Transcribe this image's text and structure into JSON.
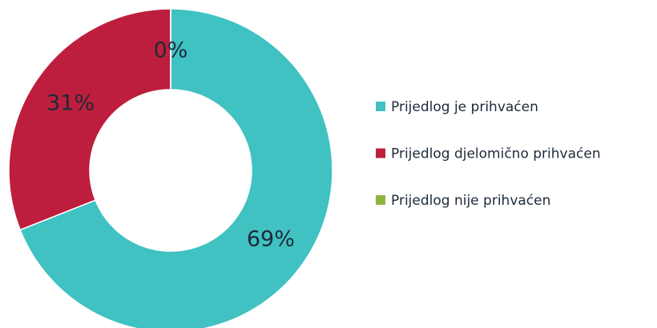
{
  "chart_data": {
    "type": "donut",
    "categories": [
      "Prijedlog je prihvaćen",
      "Prijedlog djelomično prihvaćen",
      "Prijedlog nije prihvaćen"
    ],
    "values": [
      69,
      31,
      0
    ],
    "value_labels": [
      "69%",
      "31%",
      "0%"
    ],
    "colors": [
      "#40c1c2",
      "#be1e3d",
      "#8db63c"
    ],
    "legend": "right"
  }
}
